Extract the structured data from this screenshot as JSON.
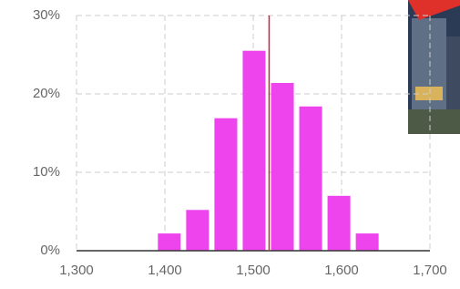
{
  "chart_data": {
    "type": "histogram",
    "bins": [
      1389,
      1421,
      1453,
      1485,
      1517,
      1549,
      1581,
      1613,
      1645
    ],
    "values": [
      2.2,
      5.2,
      16.9,
      25.5,
      21.4,
      18.4,
      7.0,
      2.2
    ],
    "color": "#ee44ee",
    "xlim": [
      1300,
      1700
    ],
    "xticks": [
      {
        "value": 1300,
        "label": "1,300"
      },
      {
        "value": 1400,
        "label": "1,400"
      },
      {
        "value": 1500,
        "label": "1,500"
      },
      {
        "value": 1600,
        "label": "1,600"
      },
      {
        "value": 1700,
        "label": "1,700"
      }
    ],
    "ylim": [
      0,
      30
    ],
    "yticks": [
      {
        "value": 0,
        "label": "0%"
      },
      {
        "value": 10,
        "label": "10%"
      },
      {
        "value": 20,
        "label": "20%"
      },
      {
        "value": 30,
        "label": "30%"
      }
    ],
    "grid": true,
    "marker_x": 1518,
    "marker_color": "#d81b3c"
  }
}
